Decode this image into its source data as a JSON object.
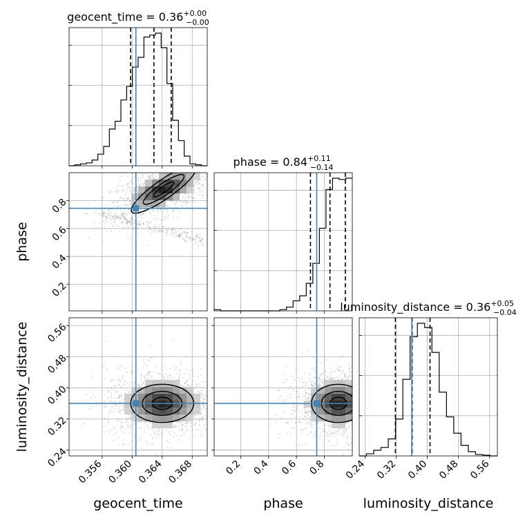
{
  "chart_data": {
    "type": "corner",
    "parameters": [
      "geocent_time",
      "phase",
      "luminosity_distance"
    ],
    "titles": [
      {
        "name": "geocent_time",
        "median": "0.36",
        "upper": "+0.00",
        "lower": "−0.00"
      },
      {
        "name": "phase",
        "median": "0.84",
        "upper": "+0.11",
        "lower": "−0.14"
      },
      {
        "name": "luminosity_distance",
        "median": "0.36",
        "upper": "+0.05",
        "lower": "−0.04"
      }
    ],
    "axis_labels": [
      "geocent_time",
      "phase",
      "luminosity_distance"
    ],
    "ranges": {
      "geocent_time": [
        0.3516,
        0.37
      ],
      "phase": [
        0.01,
        1.0
      ],
      "luminosity_distance": [
        0.225,
        0.58
      ]
    },
    "ticks": {
      "geocent_time": [
        "0.356",
        "0.360",
        "0.364",
        "0.368"
      ],
      "phase": [
        "0.2",
        "0.4",
        "0.6",
        "0.8"
      ],
      "luminosity_distance": [
        "0.24",
        "0.32",
        "0.40",
        "0.48",
        "0.56"
      ]
    },
    "truths": {
      "geocent_time": 0.3605,
      "phase": 0.745,
      "luminosity_distance": 0.36
    },
    "quantiles": {
      "geocent_time": [
        0.3598,
        0.3629,
        0.3652
      ],
      "phase": [
        0.7,
        0.84,
        0.95
      ],
      "luminosity_distance": [
        0.318,
        0.361,
        0.407
      ]
    },
    "histograms": {
      "geocent_time": {
        "bins": [
          0.3516,
          0.37
        ],
        "counts": [
          0,
          1,
          2,
          3,
          6,
          12,
          20,
          38,
          46,
          68,
          82,
          102,
          112,
          133,
          135,
          137,
          122,
          85,
          47,
          26,
          10,
          2,
          1,
          0
        ]
      },
      "phase": {
        "bins": [
          0.01,
          1.0
        ],
        "counts": [
          1,
          0,
          0,
          0,
          0,
          0,
          0,
          0,
          0,
          0,
          1,
          3,
          8,
          12,
          22,
          38,
          66,
          97,
          106,
          105,
          106
        ]
      },
      "luminosity_distance": {
        "bins": [
          0.225,
          0.58
        ],
        "counts": [
          0,
          3,
          8,
          12,
          24,
          52,
          108,
          168,
          187,
          181,
          146,
          90,
          55,
          32,
          15,
          6,
          2,
          1,
          0
        ]
      }
    },
    "scatter_note": "2-D panels show sample densities with 1-, 2- and 3-sigma contour levels",
    "grid": true,
    "colors": {
      "truth": "#4682b4",
      "hist": "#000000",
      "density": "#000000",
      "points": "#9a9a9a"
    }
  }
}
